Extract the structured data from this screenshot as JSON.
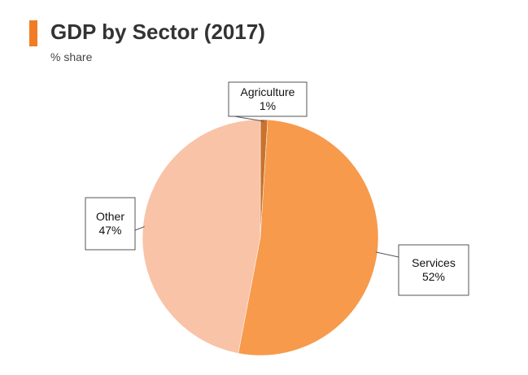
{
  "header": {
    "title": "GDP by Sector (2017)",
    "subtitle": "% share",
    "accent_color": "#f07d26"
  },
  "chart_data": {
    "type": "pie",
    "title": "GDP by Sector (2017)",
    "subtitle": "% share",
    "legend": "none",
    "slices": [
      {
        "name": "Agriculture",
        "value": 1,
        "label": "1%",
        "color": "#c8732e"
      },
      {
        "name": "Services",
        "value": 52,
        "label": "52%",
        "color": "#f79a4b"
      },
      {
        "name": "Other",
        "value": 47,
        "label": "47%",
        "color": "#f9c3a7"
      }
    ]
  }
}
